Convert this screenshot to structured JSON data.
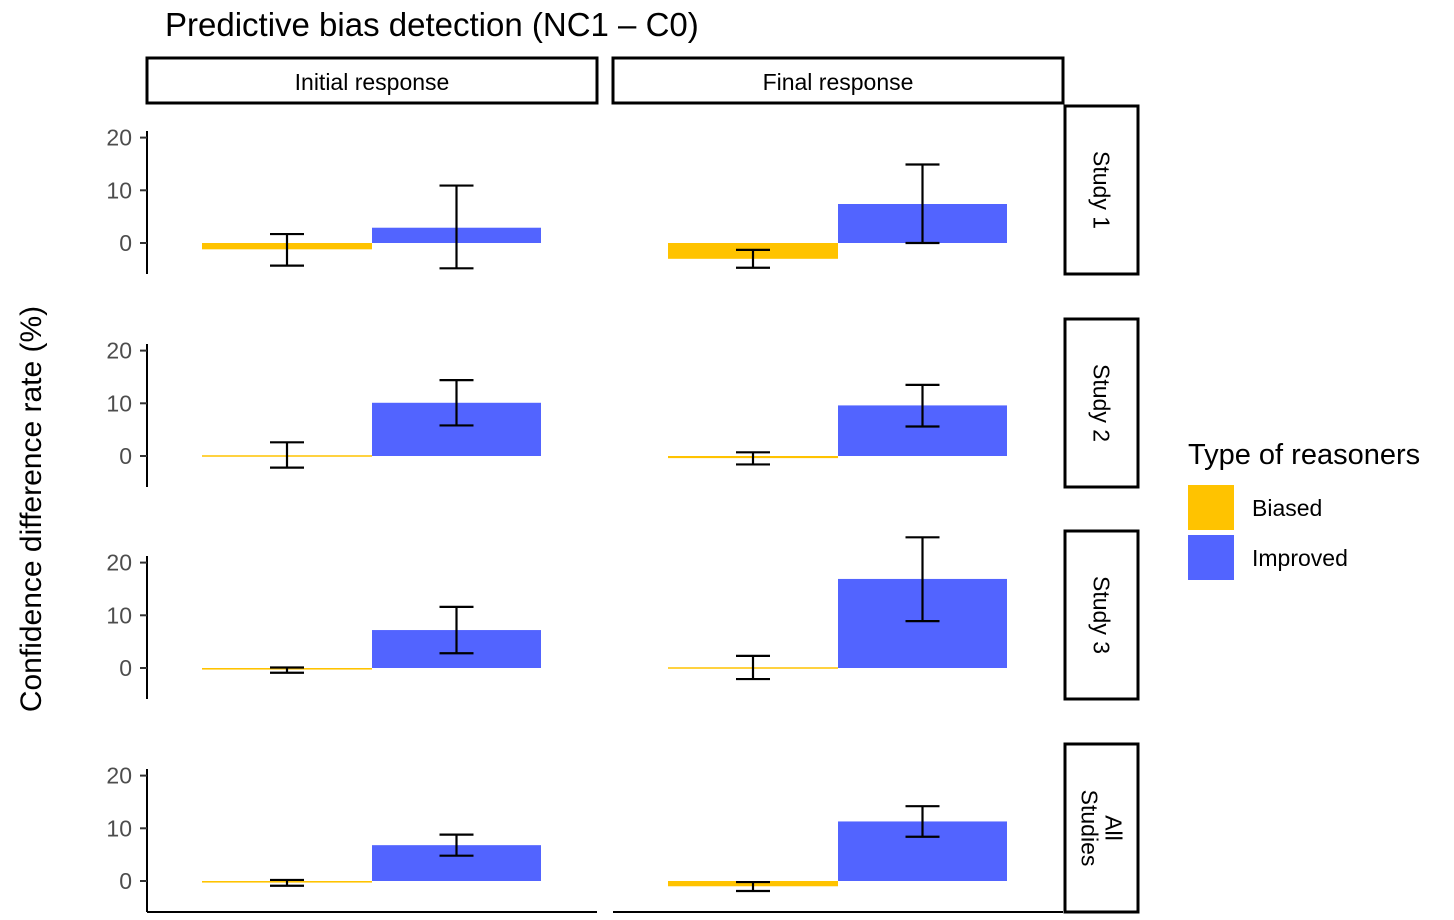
{
  "chart_data": {
    "type": "bar",
    "title": "Predictive bias detection (NC1 – C0)",
    "ylabel": "Confidence difference rate (%)",
    "xlabel": "",
    "column_facets": [
      "Initial response",
      "Final response"
    ],
    "row_facets": [
      [
        "Study 1"
      ],
      [
        "Study 2"
      ],
      [
        "Study 3"
      ],
      [
        "All",
        "Studies"
      ]
    ],
    "yticks": [
      0,
      10,
      20
    ],
    "ylim": [
      -6,
      26
    ],
    "legend": {
      "title": "Type of reasoners",
      "position": "right",
      "items": [
        {
          "label": "Biased",
          "color": "#FFC300"
        },
        {
          "label": "Improved",
          "color": "#5264FF"
        }
      ]
    },
    "series": [
      {
        "name": "Biased",
        "color": "#FFC300"
      },
      {
        "name": "Improved",
        "color": "#5264FF"
      }
    ],
    "panels": [
      {
        "row": 0,
        "col": 0,
        "values": [
          -1.2,
          2.9
        ],
        "error_low": [
          -4.3,
          -4.8
        ],
        "error_high": [
          1.7,
          10.9
        ]
      },
      {
        "row": 0,
        "col": 1,
        "values": [
          -3.0,
          7.4
        ],
        "error_low": [
          -4.7,
          0.0
        ],
        "error_high": [
          -1.3,
          14.9
        ]
      },
      {
        "row": 1,
        "col": 0,
        "values": [
          0.1,
          10.1
        ],
        "error_low": [
          -2.2,
          5.8
        ],
        "error_high": [
          2.6,
          14.4
        ]
      },
      {
        "row": 1,
        "col": 1,
        "values": [
          -0.4,
          9.6
        ],
        "error_low": [
          -1.6,
          5.6
        ],
        "error_high": [
          0.7,
          13.5
        ]
      },
      {
        "row": 2,
        "col": 0,
        "values": [
          -0.3,
          7.2
        ],
        "error_low": [
          -0.9,
          2.8
        ],
        "error_high": [
          0.1,
          11.6
        ]
      },
      {
        "row": 2,
        "col": 1,
        "values": [
          0.05,
          16.9
        ],
        "error_low": [
          -2.1,
          8.9
        ],
        "error_high": [
          2.3,
          24.8
        ]
      },
      {
        "row": 3,
        "col": 0,
        "values": [
          -0.3,
          6.8
        ],
        "error_low": [
          -0.9,
          4.8
        ],
        "error_high": [
          0.2,
          8.8
        ]
      },
      {
        "row": 3,
        "col": 1,
        "values": [
          -1.0,
          11.3
        ],
        "error_low": [
          -1.9,
          8.4
        ],
        "error_high": [
          -0.2,
          14.2
        ]
      }
    ]
  }
}
